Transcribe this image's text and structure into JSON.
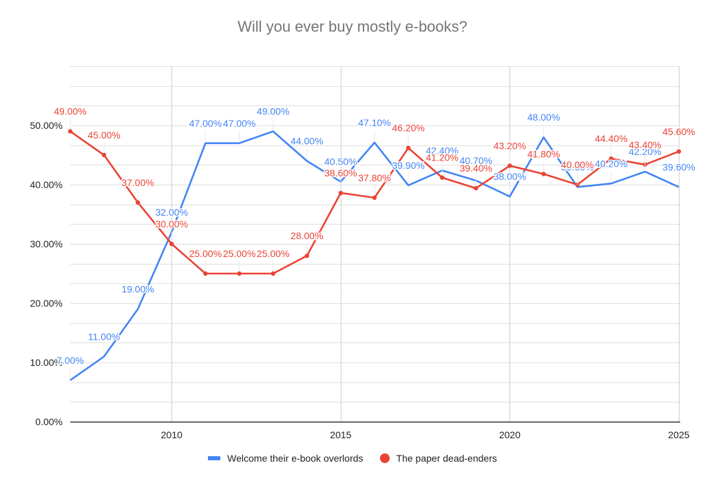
{
  "chart_data": {
    "type": "line",
    "title": "Will you ever buy mostly e-books?",
    "xlabel": "",
    "ylabel": "",
    "x": [
      2007,
      2008,
      2009,
      2010,
      2011,
      2012,
      2013,
      2014,
      2015,
      2016,
      2017,
      2018,
      2019,
      2020,
      2021,
      2022,
      2023,
      2024,
      2025
    ],
    "x_ticks": [
      "2010",
      "2015",
      "2020",
      "2025"
    ],
    "x_tick_values": [
      2010,
      2015,
      2020,
      2025
    ],
    "xlim": [
      2007,
      2025
    ],
    "y_ticks": [
      "0.00%",
      "10.00%",
      "20.00%",
      "30.00%",
      "40.00%",
      "50.00%"
    ],
    "y_tick_values": [
      0,
      10,
      20,
      30,
      40,
      50
    ],
    "ylim": [
      0,
      60
    ],
    "grid": true,
    "minor_gridlines_per_major": 2,
    "legend_position": "bottom",
    "series": [
      {
        "name": "Welcome their e-book overlords",
        "color": "#4285f4",
        "marker": "none",
        "values": [
          7.0,
          11.0,
          19.0,
          32.0,
          47.0,
          47.0,
          49.0,
          44.0,
          40.5,
          47.1,
          39.9,
          42.4,
          40.7,
          38.0,
          48.0,
          39.6,
          40.2,
          42.2,
          39.6
        ],
        "labels": [
          "7.00%",
          "11.00%",
          "19.00%",
          "32.00%",
          "47.00%",
          "47.00%",
          "49.00%",
          "44.00%",
          "40.50%",
          "47.10%",
          "39.90%",
          "42.40%",
          "40.70%",
          "38.00%",
          "48.00%",
          "39.60%",
          "40.20%",
          "42.20%",
          "39.60%"
        ]
      },
      {
        "name": "The paper dead-enders",
        "color": "#ea4335",
        "marker": "dot",
        "values": [
          49.0,
          45.0,
          37.0,
          30.0,
          25.0,
          25.0,
          25.0,
          28.0,
          38.6,
          37.8,
          46.2,
          41.2,
          39.4,
          43.2,
          41.8,
          40.0,
          44.4,
          43.4,
          45.6
        ],
        "labels": [
          "49.00%",
          "45.00%",
          "37.00%",
          "30.00%",
          "25.00%",
          "25.00%",
          "25.00%",
          "28.00%",
          "38.60%",
          "37.80%",
          "46.20%",
          "41.20%",
          "39.40%",
          "43.20%",
          "41.80%",
          "40.00%",
          "44.40%",
          "43.40%",
          "45.60%"
        ]
      }
    ]
  },
  "legend": {
    "items": [
      {
        "label": "Welcome their e-book overlords",
        "color": "#4285f4"
      },
      {
        "label": "The paper dead-enders",
        "color": "#ea4335"
      }
    ]
  }
}
